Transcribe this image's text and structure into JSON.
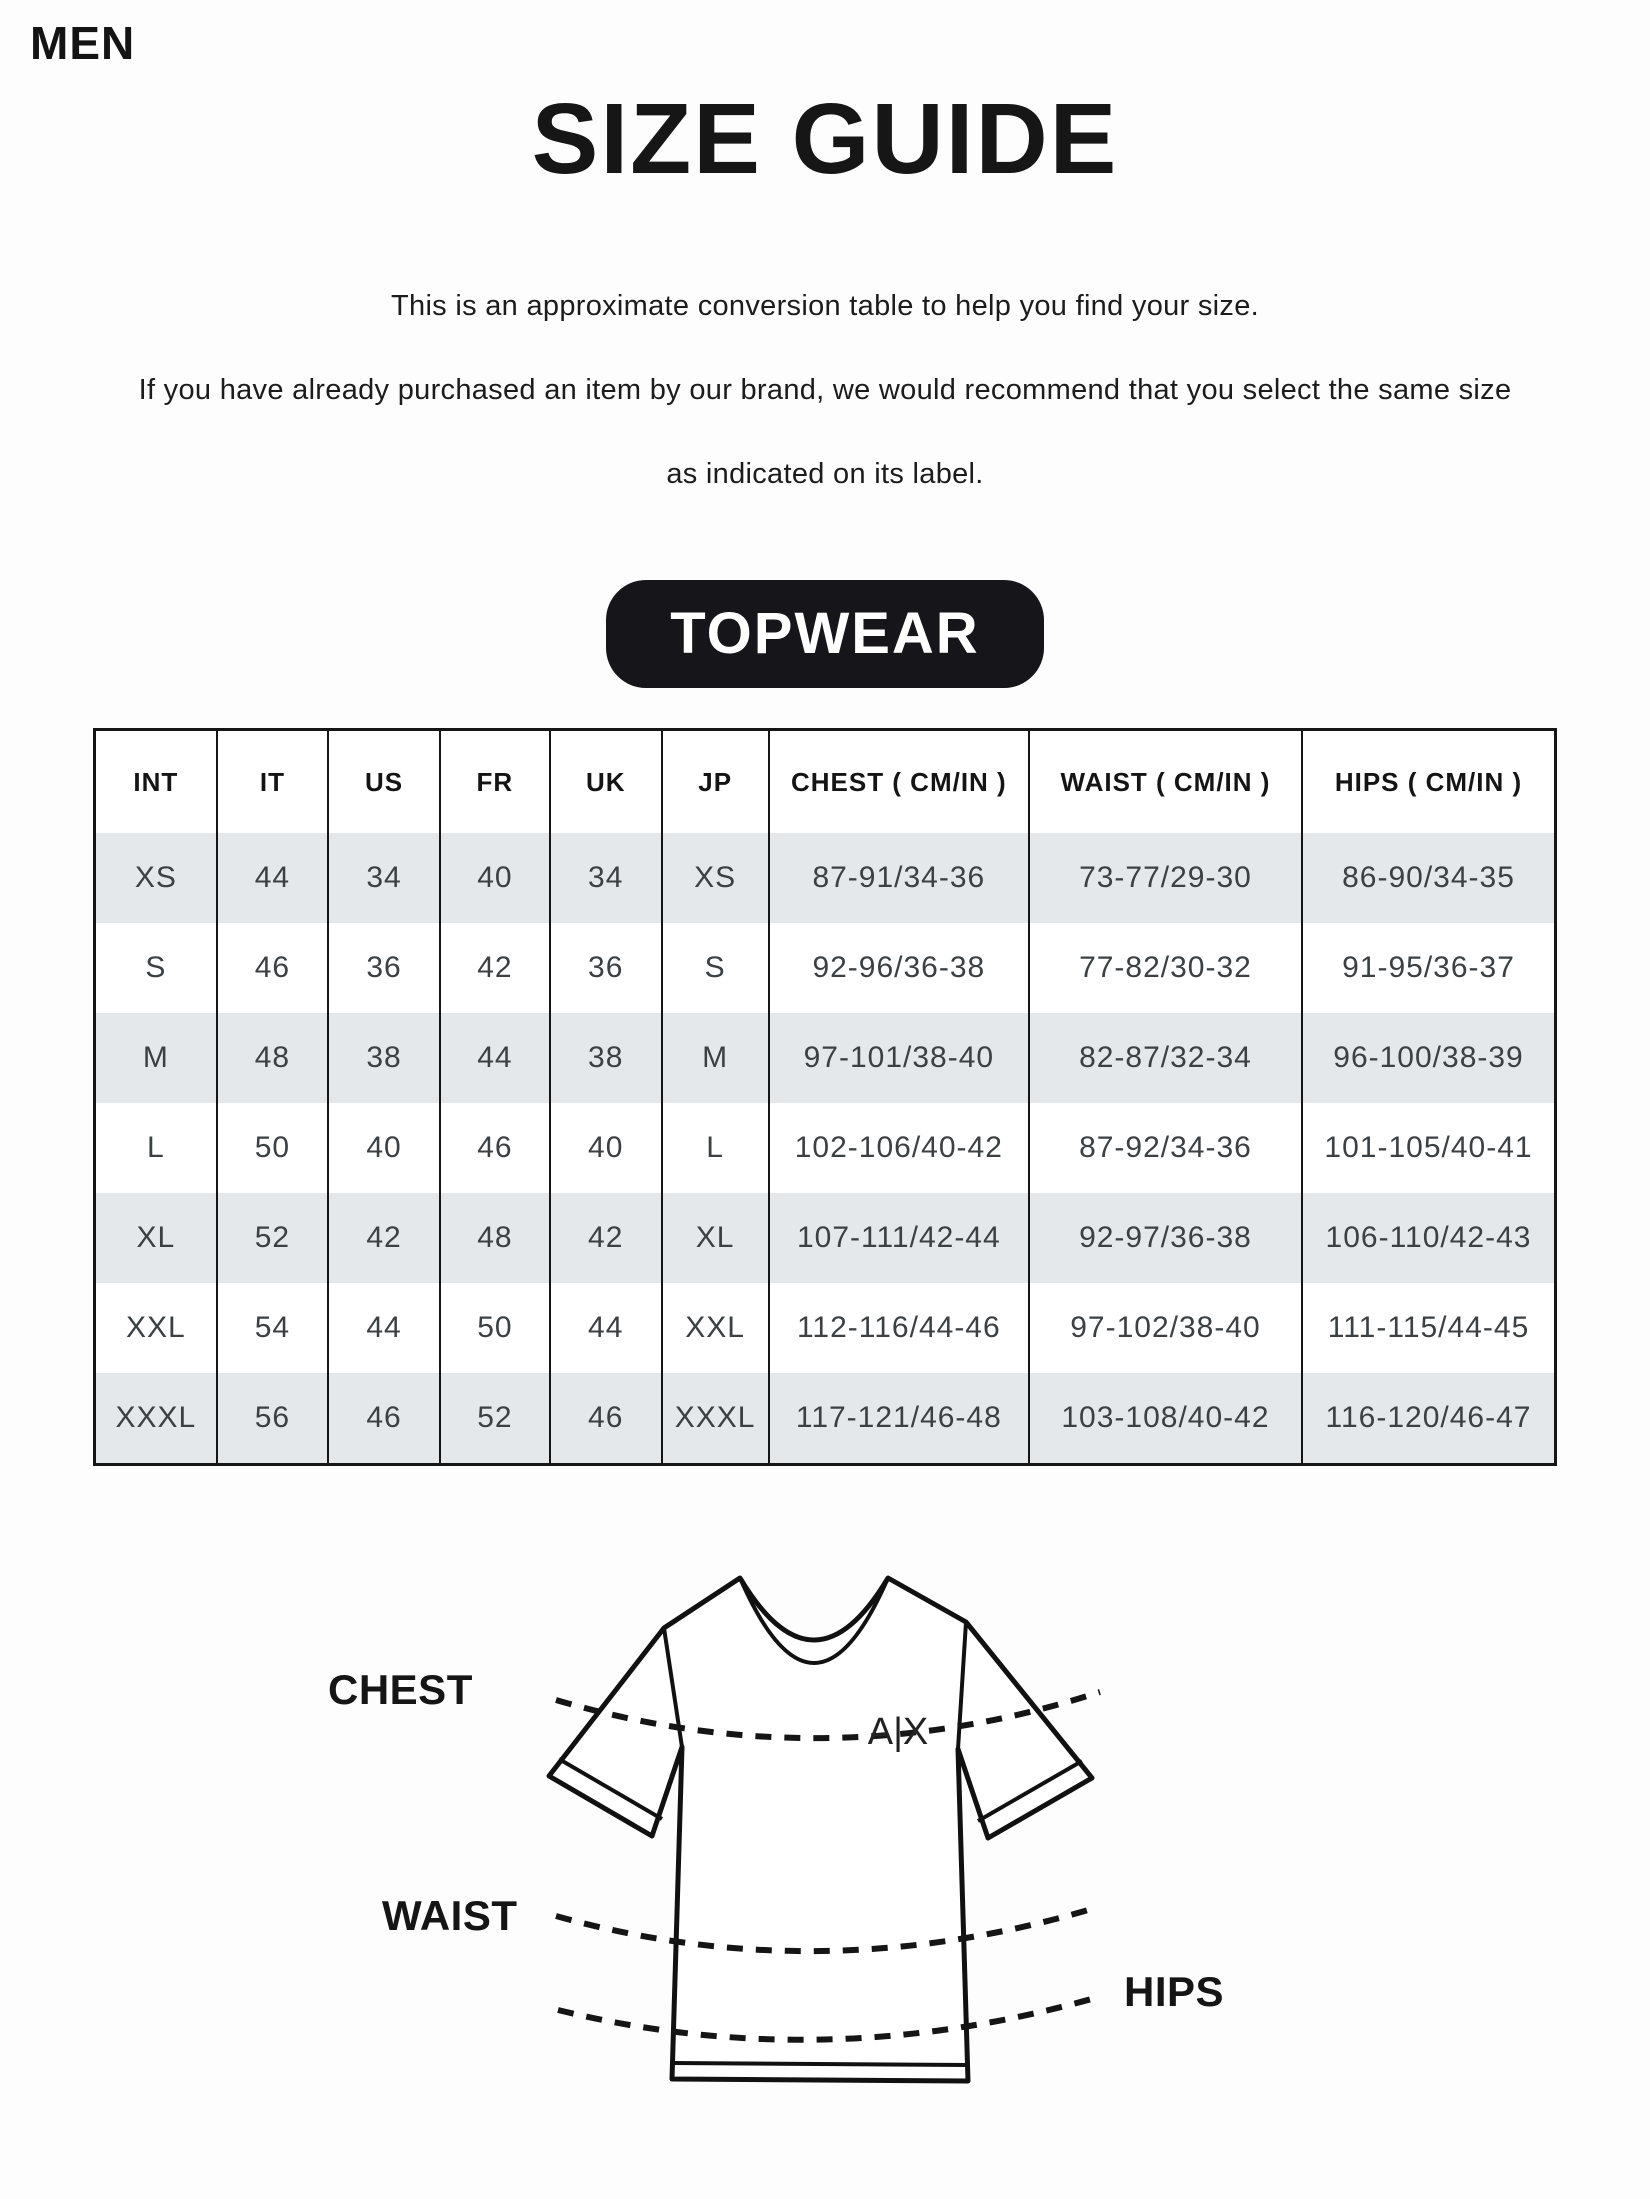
{
  "page": {
    "category": "MEN",
    "title": "SIZE GUIDE",
    "description_lines": [
      "This is an approximate conversion table to help you find your size.",
      "If you have already purchased an item by our brand, we would recommend that you select the same size",
      "as indicated on its label."
    ],
    "section_badge": "TOPWEAR"
  },
  "size_table": {
    "columns": [
      "INT",
      "IT",
      "US",
      "FR",
      "UK",
      "JP",
      "CHEST ( CM/IN )",
      "WAIST ( CM/IN )",
      "HIPS ( CM/IN )"
    ],
    "rows": [
      [
        "XS",
        "44",
        "34",
        "40",
        "34",
        "XS",
        "87-91/34-36",
        "73-77/29-30",
        "86-90/34-35"
      ],
      [
        "S",
        "46",
        "36",
        "42",
        "36",
        "S",
        "92-96/36-38",
        "77-82/30-32",
        "91-95/36-37"
      ],
      [
        "M",
        "48",
        "38",
        "44",
        "38",
        "M",
        "97-101/38-40",
        "82-87/32-34",
        "96-100/38-39"
      ],
      [
        "L",
        "50",
        "40",
        "46",
        "40",
        "L",
        "102-106/40-42",
        "87-92/34-36",
        "101-105/40-41"
      ],
      [
        "XL",
        "52",
        "42",
        "48",
        "42",
        "XL",
        "107-111/42-44",
        "92-97/36-38",
        "106-110/42-43"
      ],
      [
        "XXL",
        "54",
        "44",
        "50",
        "44",
        "XXL",
        "112-116/44-46",
        "97-102/38-40",
        "111-115/44-45"
      ],
      [
        "XXXL",
        "56",
        "46",
        "52",
        "46",
        "XXXL",
        "117-121/46-48",
        "103-108/40-42",
        "116-120/46-47"
      ]
    ]
  },
  "diagram": {
    "chest_label": "CHEST",
    "waist_label": "WAIST",
    "hips_label": "HIPS",
    "brand_logo": "A|X"
  },
  "colors": {
    "text": "#1a1a1a",
    "badge_background": "#15151a",
    "row_stripe": "#e5e8eb",
    "background": "#fdfdfd"
  }
}
